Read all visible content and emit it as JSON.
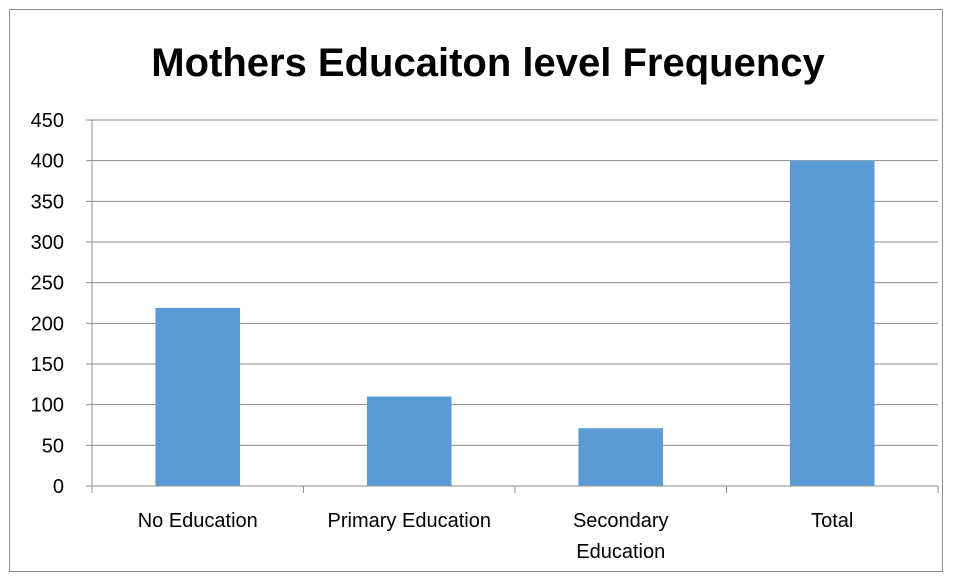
{
  "chart_data": {
    "type": "bar",
    "title": "Mothers Educaiton level  Frequency",
    "xlabel": "",
    "ylabel": "",
    "categories": [
      "No Education",
      "Primary Education",
      "Secondary Education",
      "Total"
    ],
    "category_lines": [
      [
        "No Education"
      ],
      [
        "Primary Education"
      ],
      [
        "Secondary",
        "Education"
      ],
      [
        "Total"
      ]
    ],
    "values": [
      219,
      110,
      71,
      400
    ],
    "ylim": [
      0,
      450
    ],
    "yticks": [
      0,
      50,
      100,
      150,
      200,
      250,
      300,
      350,
      400,
      450
    ],
    "grid": true,
    "legend": "none",
    "bar_color": "#5b9bd5",
    "grid_color": "#8c8c8c"
  }
}
